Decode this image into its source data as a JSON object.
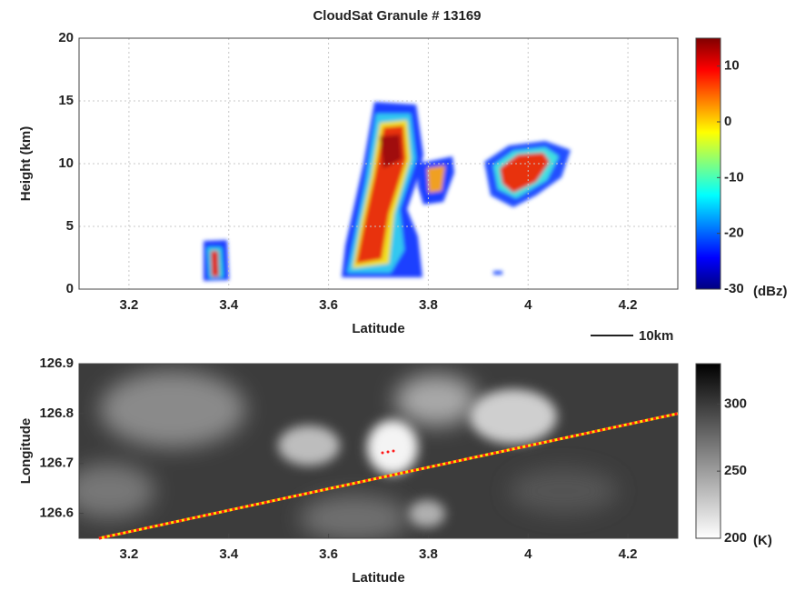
{
  "chart_data": [
    {
      "type": "heatmap",
      "title": "CloudSat Granule # 13169",
      "xlabel": "Latitude",
      "ylabel": "Height (km)",
      "xlim": [
        3.1,
        4.3
      ],
      "xticks": [
        3.2,
        3.4,
        3.6,
        3.8,
        4,
        4.2
      ],
      "ylim": [
        0,
        20
      ],
      "yticks": [
        0,
        5,
        10,
        15,
        20
      ],
      "grid": true,
      "colorbar": {
        "colormap": "jet",
        "lim": [
          -30,
          15
        ],
        "ticks": [
          -30,
          -20,
          -10,
          0,
          10
        ],
        "unit": "(dBz)"
      },
      "scale_bar": "10km"
    },
    {
      "type": "image",
      "xlabel": "Latitude",
      "ylabel": "Longitude",
      "xlim": [
        3.1,
        4.3
      ],
      "xticks": [
        3.2,
        3.4,
        3.6,
        3.8,
        4,
        4.2
      ],
      "ylim": [
        126.55,
        126.9
      ],
      "yticks": [
        126.6,
        126.7,
        126.8,
        126.9
      ],
      "grid": false,
      "colorbar": {
        "colormap": "gray",
        "lim": [
          200,
          330
        ],
        "ticks": [
          200,
          250,
          300
        ],
        "unit": "(K)"
      },
      "series": [
        {
          "x": [
            3.14,
            4.3
          ],
          "values": [
            126.55,
            126.8
          ],
          "color": "#ff1a1a"
        }
      ]
    }
  ]
}
